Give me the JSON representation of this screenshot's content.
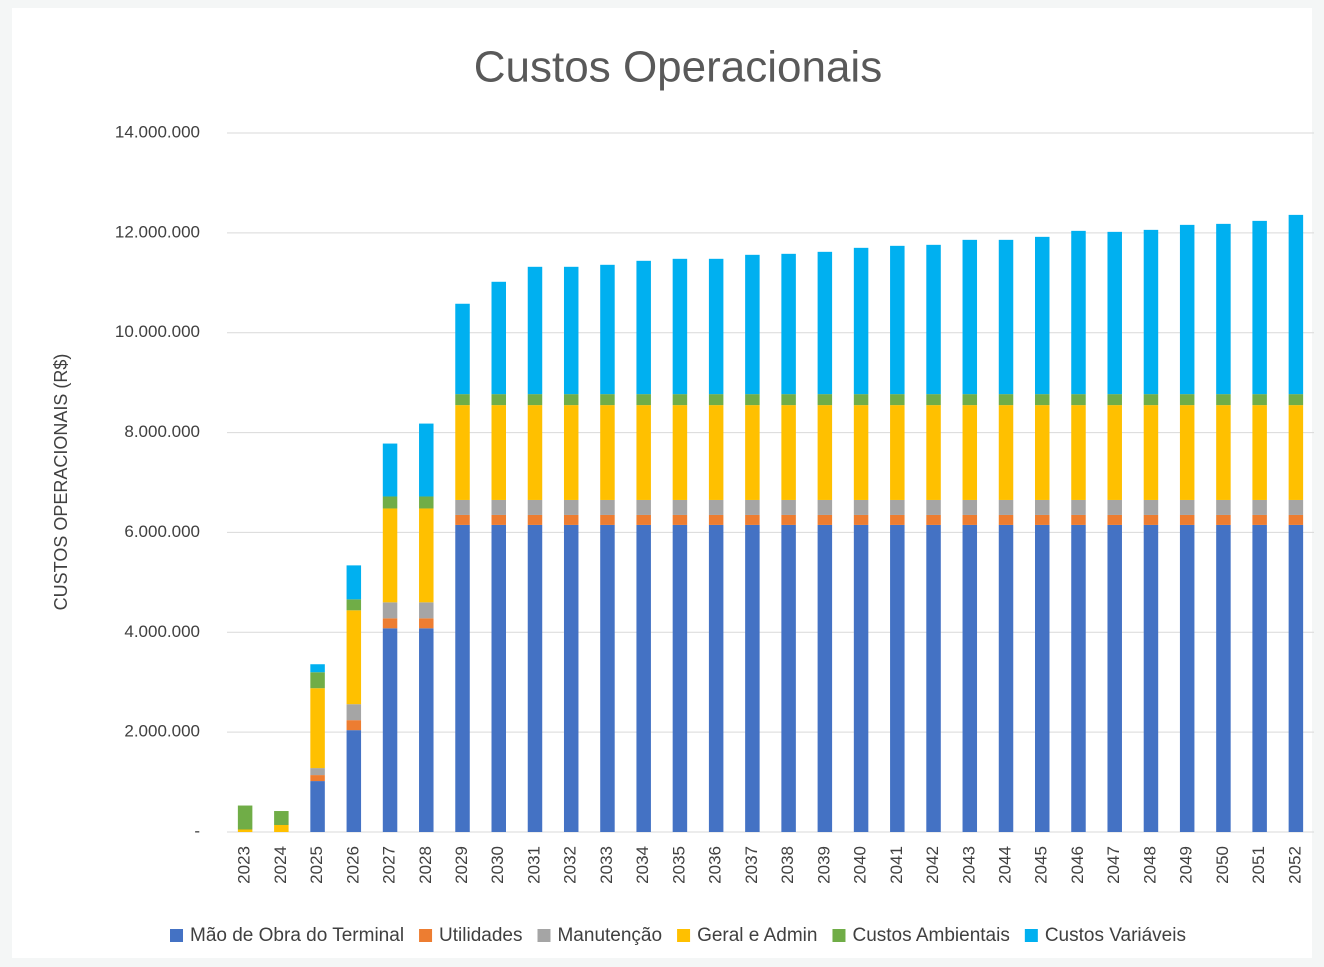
{
  "chart_data": {
    "type": "stacked_bar",
    "title": "Custos Operacionais",
    "y_label": "CUSTOS OPERACIONAIS (R$)",
    "categories": [
      "2023",
      "2024",
      "2025",
      "2026",
      "2027",
      "2028",
      "2029",
      "2030",
      "2031",
      "2032",
      "2033",
      "2034",
      "2035",
      "2036",
      "2037",
      "2038",
      "2039",
      "2040",
      "2041",
      "2042",
      "2043",
      "2044",
      "2045",
      "2046",
      "2047",
      "2048",
      "2049",
      "2050",
      "2051",
      "2052"
    ],
    "series": [
      {
        "name": "Mão de Obra do Terminal",
        "color": "#4472c4",
        "values": [
          0,
          0,
          1020000,
          2040000,
          4080000,
          4080000,
          6150000,
          6150000,
          6150000,
          6150000,
          6150000,
          6150000,
          6150000,
          6150000,
          6150000,
          6150000,
          6150000,
          6150000,
          6150000,
          6150000,
          6150000,
          6150000,
          6150000,
          6150000,
          6150000,
          6150000,
          6150000,
          6150000,
          6150000,
          6150000
        ]
      },
      {
        "name": "Utilidades",
        "color": "#ed7d31",
        "values": [
          0,
          0,
          120000,
          200000,
          200000,
          200000,
          200000,
          200000,
          200000,
          200000,
          200000,
          200000,
          200000,
          200000,
          200000,
          200000,
          200000,
          200000,
          200000,
          200000,
          200000,
          200000,
          200000,
          200000,
          200000,
          200000,
          200000,
          200000,
          200000,
          200000
        ]
      },
      {
        "name": "Manutenção",
        "color": "#a5a5a5",
        "values": [
          0,
          0,
          140000,
          320000,
          320000,
          320000,
          300000,
          300000,
          300000,
          300000,
          300000,
          300000,
          300000,
          300000,
          300000,
          300000,
          300000,
          300000,
          300000,
          300000,
          300000,
          300000,
          300000,
          300000,
          300000,
          300000,
          300000,
          300000,
          300000,
          300000
        ]
      },
      {
        "name": "Geral e Admin",
        "color": "#ffc000",
        "values": [
          50000,
          140000,
          1600000,
          1880000,
          1880000,
          1880000,
          1900000,
          1900000,
          1900000,
          1900000,
          1900000,
          1900000,
          1900000,
          1900000,
          1900000,
          1900000,
          1900000,
          1900000,
          1900000,
          1900000,
          1900000,
          1900000,
          1900000,
          1900000,
          1900000,
          1900000,
          1900000,
          1900000,
          1900000,
          1900000
        ]
      },
      {
        "name": "Custos Ambientais",
        "color": "#70ad47",
        "values": [
          480000,
          280000,
          320000,
          220000,
          240000,
          240000,
          220000,
          220000,
          220000,
          220000,
          220000,
          220000,
          220000,
          220000,
          220000,
          220000,
          220000,
          220000,
          220000,
          220000,
          220000,
          220000,
          220000,
          220000,
          220000,
          220000,
          220000,
          220000,
          220000,
          220000
        ]
      },
      {
        "name": "Custos Variáveis",
        "color": "#00b0f0",
        "values": [
          0,
          0,
          160000,
          680000,
          1060000,
          1460000,
          1810000,
          2250000,
          2550000,
          2550000,
          2590000,
          2670000,
          2710000,
          2710000,
          2790000,
          2810000,
          2850000,
          2930000,
          2970000,
          2990000,
          3090000,
          3090000,
          3150000,
          3270000,
          3250000,
          3290000,
          3390000,
          3410000,
          3470000,
          3590000
        ]
      }
    ],
    "ylim": [
      0,
      14000000
    ],
    "yticks": [
      {
        "value": 0,
        "label": "-"
      },
      {
        "value": 2000000,
        "label": "2.000.000"
      },
      {
        "value": 4000000,
        "label": "4.000.000"
      },
      {
        "value": 6000000,
        "label": "6.000.000"
      },
      {
        "value": 8000000,
        "label": "8.000.000"
      },
      {
        "value": 10000000,
        "label": "10.000.000"
      },
      {
        "value": 12000000,
        "label": "12.000.000"
      },
      {
        "value": 14000000,
        "label": "14.000.000"
      }
    ],
    "grid": true,
    "legend": "bottom"
  }
}
